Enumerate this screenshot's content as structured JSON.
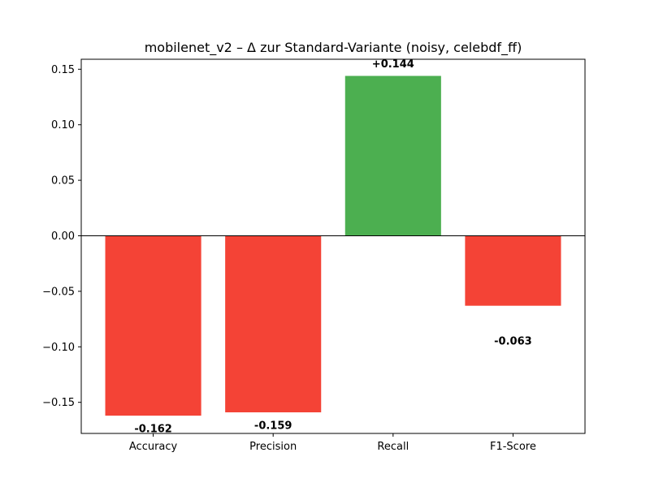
{
  "chart_data": {
    "type": "bar",
    "title": "mobilenet_v2 – Δ zur Standard-Variante (noisy, celebdf_ff)",
    "xlabel": "",
    "ylabel": "",
    "categories": [
      "Accuracy",
      "Precision",
      "Recall",
      "F1-Score"
    ],
    "values": [
      -0.162,
      -0.159,
      0.144,
      -0.063
    ],
    "data_labels": [
      "-0.162",
      "-0.159",
      "+0.144",
      "-0.063"
    ],
    "ylim": [
      -0.178,
      0.159
    ],
    "yticks": [
      0.15,
      0.1,
      0.05,
      0.0,
      -0.05,
      -0.1,
      -0.15
    ],
    "ytick_labels": [
      "0.15",
      "0.10",
      "0.05",
      "0.00",
      "−0.05",
      "−0.10",
      "−0.15"
    ],
    "grid": false,
    "colors": {
      "positive": "#4caf50",
      "negative": "#f44336",
      "zero_line": "#000000"
    }
  }
}
